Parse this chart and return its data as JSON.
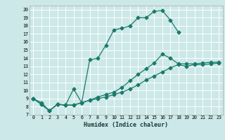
{
  "title": "",
  "xlabel": "Humidex (Indice chaleur)",
  "bg_color": "#cce8e8",
  "grid_color": "#ffffff",
  "line_color": "#1a7a6a",
  "xlim": [
    -0.5,
    23.5
  ],
  "ylim": [
    7,
    20.5
  ],
  "xticks": [
    0,
    1,
    2,
    3,
    4,
    5,
    6,
    7,
    8,
    9,
    10,
    11,
    12,
    13,
    14,
    15,
    16,
    17,
    18,
    19,
    20,
    21,
    22,
    23
  ],
  "yticks": [
    7,
    8,
    9,
    10,
    11,
    12,
    13,
    14,
    15,
    16,
    17,
    18,
    19,
    20
  ],
  "line1_x": [
    0,
    1,
    2,
    3,
    4,
    5,
    6,
    7,
    8,
    9,
    10,
    11,
    12,
    13,
    14,
    15,
    16,
    17,
    18
  ],
  "line1_y": [
    9,
    8.5,
    7.5,
    8.3,
    8.2,
    10.2,
    8.5,
    13.8,
    14.0,
    15.6,
    17.5,
    17.7,
    18.0,
    19.0,
    19.0,
    19.8,
    19.9,
    18.7,
    17.2
  ],
  "line2_x": [
    0,
    1,
    2,
    3,
    4,
    5,
    6,
    7,
    8,
    9,
    10,
    11,
    12,
    13,
    14,
    15,
    16,
    17,
    18,
    19,
    20,
    21,
    22,
    23
  ],
  "line2_y": [
    9,
    8.3,
    7.5,
    8.3,
    8.2,
    8.2,
    8.5,
    8.8,
    9.2,
    9.5,
    9.8,
    10.4,
    11.2,
    12.0,
    12.7,
    13.4,
    14.5,
    14.0,
    13.3,
    13.3,
    13.3,
    13.4,
    13.5,
    13.5
  ],
  "line3_x": [
    0,
    1,
    2,
    3,
    4,
    5,
    6,
    7,
    8,
    9,
    10,
    11,
    12,
    13,
    14,
    15,
    16,
    17,
    18,
    19,
    20,
    21,
    22,
    23
  ],
  "line3_y": [
    9,
    8.3,
    7.5,
    8.3,
    8.2,
    8.2,
    8.5,
    8.8,
    9.0,
    9.2,
    9.5,
    9.8,
    10.2,
    10.7,
    11.3,
    11.8,
    12.3,
    12.8,
    13.2,
    13.0,
    13.2,
    13.2,
    13.3,
    13.4
  ]
}
